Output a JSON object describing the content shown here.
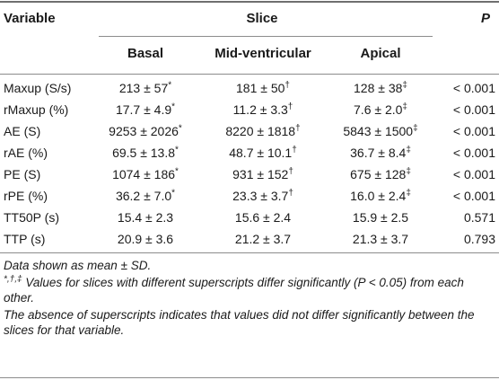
{
  "header": {
    "variable": "Variable",
    "slice": "Slice",
    "p": "P",
    "basal": "Basal",
    "mid": "Mid-ventricular",
    "apical": "Apical"
  },
  "rows": [
    {
      "variable": "Maxup (S/s)",
      "basal": "213 ± 57",
      "basal_sup": "*",
      "mid": "181 ± 50",
      "mid_sup": "†",
      "apical": "128 ± 38",
      "apical_sup": "‡",
      "p": "< 0.001"
    },
    {
      "variable": "rMaxup (%)",
      "basal": "17.7 ± 4.9",
      "basal_sup": "*",
      "mid": "11.2 ± 3.3",
      "mid_sup": "†",
      "apical": "7.6 ± 2.0",
      "apical_sup": "‡",
      "p": "< 0.001"
    },
    {
      "variable": "AE (S)",
      "basal": "9253 ± 2026",
      "basal_sup": "*",
      "mid": "8220 ± 1818",
      "mid_sup": "†",
      "apical": "5843 ± 1500",
      "apical_sup": "‡",
      "p": "< 0.001"
    },
    {
      "variable": "rAE (%)",
      "basal": "69.5 ± 13.8",
      "basal_sup": "*",
      "mid": "48.7 ± 10.1",
      "mid_sup": "†",
      "apical": "36.7 ± 8.4",
      "apical_sup": "‡",
      "p": "< 0.001"
    },
    {
      "variable": "PE (S)",
      "basal": "1074 ± 186",
      "basal_sup": "*",
      "mid": "931 ± 152",
      "mid_sup": "†",
      "apical": "675 ± 128",
      "apical_sup": "‡",
      "p": "< 0.001"
    },
    {
      "variable": "rPE (%)",
      "basal": "36.2 ± 7.0",
      "basal_sup": "*",
      "mid": "23.3 ± 3.7",
      "mid_sup": "†",
      "apical": "16.0 ± 2.4",
      "apical_sup": "‡",
      "p": "< 0.001"
    },
    {
      "variable": "TT50P (s)",
      "basal": "15.4 ± 2.3",
      "basal_sup": "",
      "mid": "15.6 ± 2.4",
      "mid_sup": "",
      "apical": "15.9 ± 2.5",
      "apical_sup": "",
      "p": "0.571"
    },
    {
      "variable": "TTP (s)",
      "basal": "20.9 ± 3.6",
      "basal_sup": "",
      "mid": "21.2 ± 3.7",
      "mid_sup": "",
      "apical": "21.3 ± 3.7",
      "apical_sup": "",
      "p": "0.793"
    }
  ],
  "footnotes": {
    "line1": "Data shown as mean ± SD.",
    "line2_marks": "*,†,‡",
    "line2_text": " Values for slices with different superscripts differ significantly (P < 0.05) from each other.",
    "line3": "The absence of superscripts indicates that values did not differ significantly between the slices for that variable."
  }
}
